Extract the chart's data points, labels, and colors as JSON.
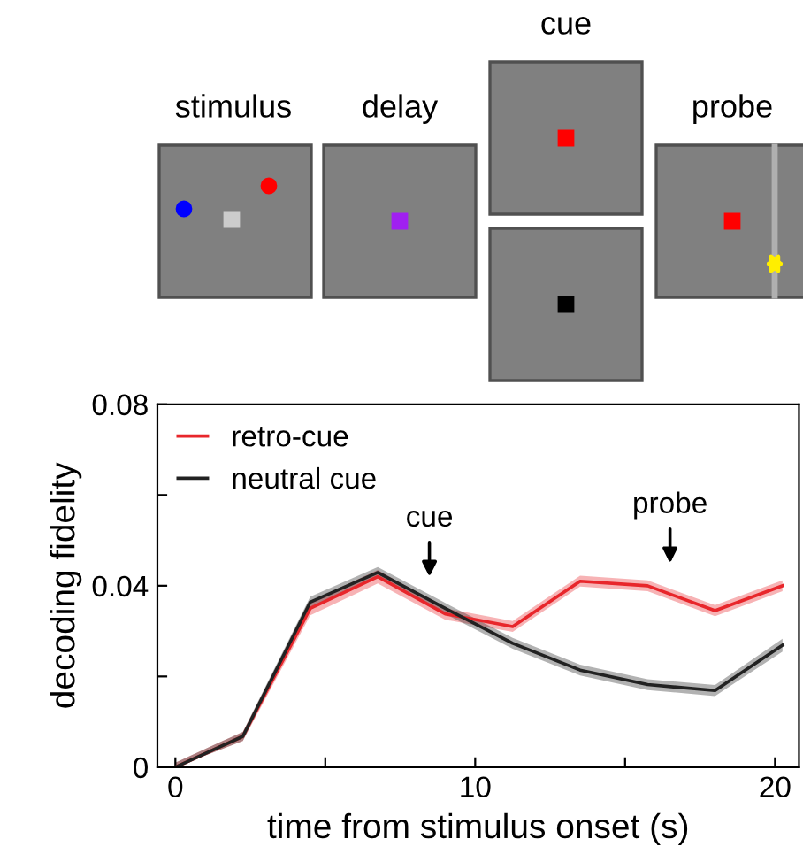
{
  "chart_data": {
    "type": "line",
    "xlabel": "time from stimulus onset (s)",
    "ylabel": "decoding fidelity",
    "xlim": [
      -0.6,
      20.8
    ],
    "xticks": [
      0,
      {
        "value": 5,
        "label": null
      },
      10,
      {
        "value": 15,
        "label": null
      },
      20
    ],
    "ylim": [
      0,
      0.08
    ],
    "yticks": [
      0,
      {
        "value": 0.02,
        "label": null
      },
      0.04,
      {
        "value": 0.06,
        "label": null
      },
      0.08
    ],
    "x": [
      0,
      2.25,
      4.5,
      6.75,
      9,
      11.25,
      13.5,
      15.75,
      18,
      20.25
    ],
    "series": [
      {
        "name": "retro-cue",
        "color": "#e8262b",
        "values": [
          0.0,
          0.0068,
          0.035,
          0.042,
          0.0338,
          0.031,
          0.041,
          0.04,
          0.0345,
          0.04
        ],
        "lower": [
          0.0,
          0.0058,
          0.0335,
          0.0405,
          0.0325,
          0.0298,
          0.0398,
          0.0388,
          0.0333,
          0.0388
        ],
        "upper": [
          0.001,
          0.0078,
          0.0365,
          0.0435,
          0.035,
          0.0322,
          0.0422,
          0.0412,
          0.0357,
          0.0412
        ]
      },
      {
        "name": "neutral cue",
        "color": "#222222",
        "values": [
          0.0,
          0.0068,
          0.0364,
          0.0429,
          0.035,
          0.0273,
          0.0214,
          0.0182,
          0.0169,
          0.0269
        ],
        "lower": [
          0.0,
          0.0058,
          0.0352,
          0.0417,
          0.0338,
          0.0261,
          0.0202,
          0.017,
          0.0157,
          0.0255
        ],
        "upper": [
          0.001,
          0.0078,
          0.0376,
          0.0441,
          0.0362,
          0.0285,
          0.0226,
          0.0194,
          0.0181,
          0.0283
        ]
      }
    ],
    "legend": "top left",
    "grid": false,
    "marker": "none",
    "line_style": "solid",
    "annotations": [
      "stimulus",
      "delay",
      "cue",
      "probe",
      "cue",
      "probe"
    ]
  }
}
